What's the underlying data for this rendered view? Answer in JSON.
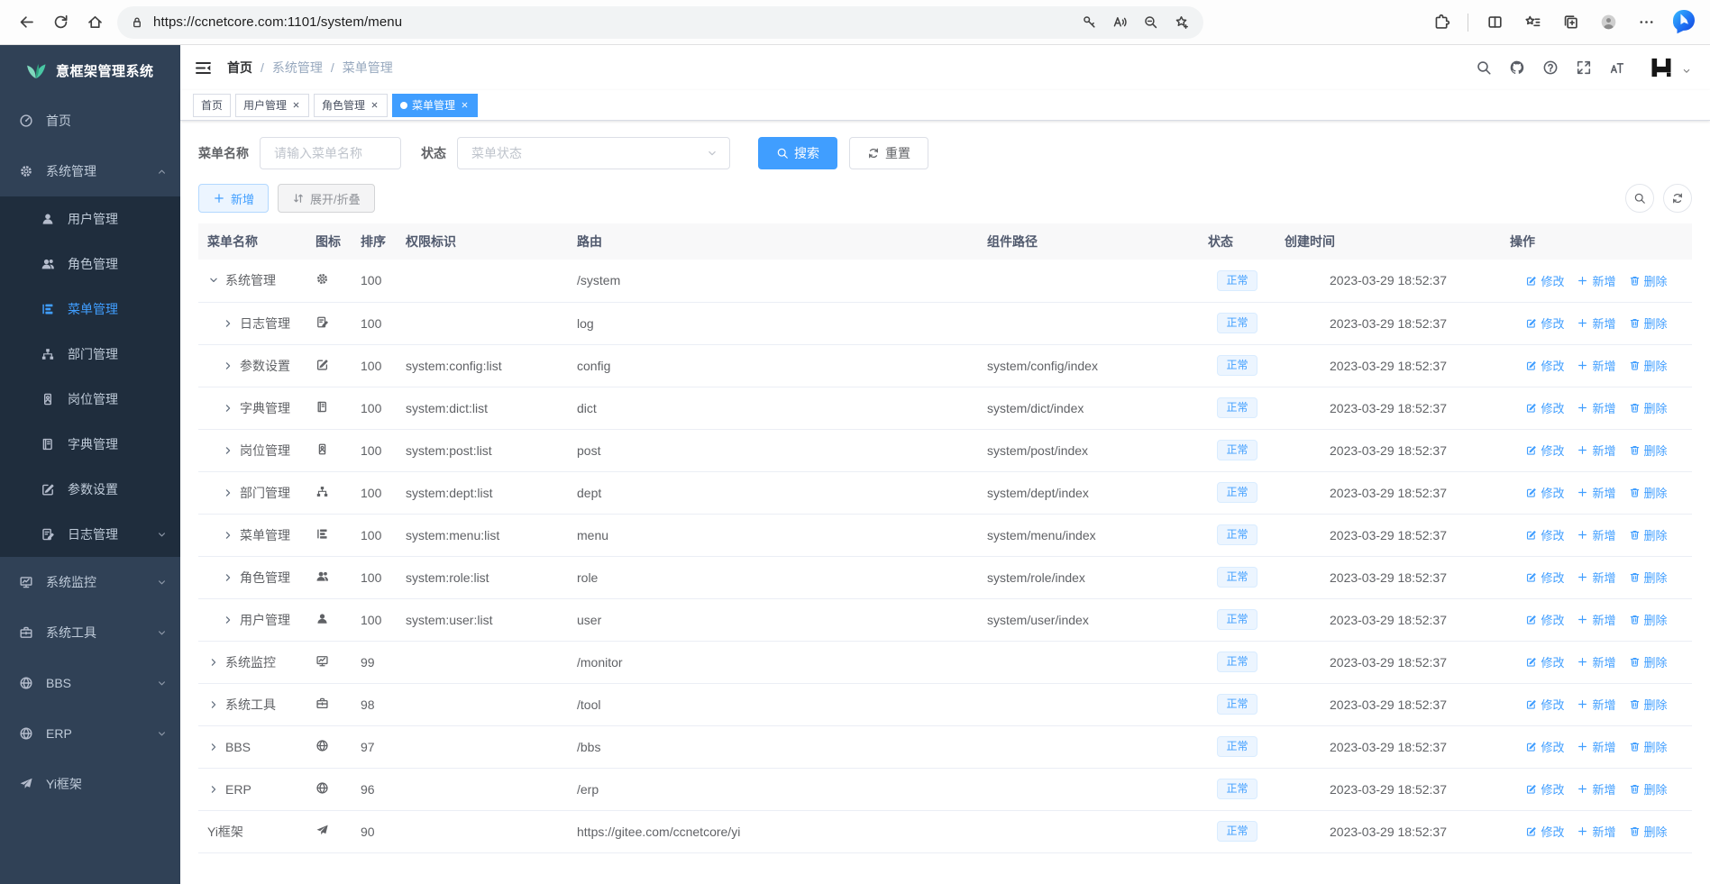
{
  "browser": {
    "url": "https://ccnetcore.com:1101/system/menu",
    "lock_icon": "lock-icon",
    "nav_icons": [
      {
        "icon": "back-icon"
      },
      {
        "icon": "reload-icon"
      },
      {
        "icon": "home-icon"
      }
    ],
    "omnibox_trailing_icons": [
      {
        "icon": "key-icon"
      },
      {
        "icon": "read-aloud-icon"
      },
      {
        "icon": "zoom-out-icon"
      },
      {
        "icon": "favorite-add-icon"
      }
    ],
    "toolbar_icons_a": [
      {
        "icon": "extensions-icon"
      }
    ],
    "toolbar_icons_b": [
      {
        "icon": "split-screen-icon"
      },
      {
        "icon": "favorites-icon"
      },
      {
        "icon": "collections-icon"
      },
      {
        "icon": "profile-icon"
      },
      {
        "icon": "more-icon"
      }
    ],
    "bing_icon": "bing-icon"
  },
  "app": {
    "accent_color": "#409eff",
    "sidebar_bg": "#304156",
    "submenu_bg": "#1f2d3d",
    "sidebar": {
      "logo_icon": "leaf-icon",
      "title": "意框架管理系统",
      "items": [
        {
          "label": "首页",
          "icon": "dashboard-icon"
        },
        {
          "label": "系统管理",
          "icon": "gear-icon",
          "arrow": "chevron-up-icon"
        },
        {
          "label": "用户管理",
          "icon": "user-icon",
          "sub": true
        },
        {
          "label": "角色管理",
          "icon": "users-icon",
          "sub": true
        },
        {
          "label": "菜单管理",
          "icon": "menu-tree-icon",
          "sub": true,
          "active": true
        },
        {
          "label": "部门管理",
          "icon": "org-tree-icon",
          "sub": true
        },
        {
          "label": "岗位管理",
          "icon": "badge-icon",
          "sub": true
        },
        {
          "label": "字典管理",
          "icon": "book-icon",
          "sub": true
        },
        {
          "label": "参数设置",
          "icon": "edit-square-icon",
          "sub": true
        },
        {
          "label": "日志管理",
          "icon": "doc-edit-icon",
          "sub": true,
          "arrow": "chevron-down-icon"
        },
        {
          "label": "系统监控",
          "icon": "monitor-icon",
          "arrow": "chevron-down-icon"
        },
        {
          "label": "系统工具",
          "icon": "toolbox-icon",
          "arrow": "chevron-down-icon"
        },
        {
          "label": "BBS",
          "icon": "globe-icon",
          "arrow": "chevron-down-icon"
        },
        {
          "label": "ERP",
          "icon": "globe-icon",
          "arrow": "chevron-down-icon"
        },
        {
          "label": "Yi框架",
          "icon": "send-icon"
        }
      ]
    },
    "navbar": {
      "menu_icon": "hamburger-icon",
      "breadcrumb": [
        {
          "label": "首页"
        },
        {
          "label": "系统管理"
        },
        {
          "label": "菜单管理"
        }
      ],
      "icons": [
        {
          "icon": "search-icon"
        },
        {
          "icon": "github-icon"
        },
        {
          "icon": "question-icon"
        },
        {
          "icon": "fullscreen-icon"
        },
        {
          "icon": "font-size-icon"
        }
      ],
      "avatar_icon": "yi-logo-icon",
      "avatar_caret": "chevron-down-icon"
    },
    "tabs": [
      {
        "label": "首页"
      },
      {
        "label": "用户管理",
        "closable": true,
        "close_icon": "close-icon"
      },
      {
        "label": "角色管理",
        "closable": true,
        "close_icon": "close-icon"
      },
      {
        "label": "菜单管理",
        "active": true,
        "closable": true,
        "close_icon": "close-icon"
      }
    ],
    "filter": {
      "name_label": "菜单名称",
      "name_placeholder": "请输入菜单名称",
      "status_label": "状态",
      "status_placeholder": "菜单状态",
      "caret_icon": "caret-down-icon",
      "search_label": "搜索",
      "search_icon": "search-icon",
      "reset_label": "重置",
      "reset_icon": "refresh-icon"
    },
    "toolbar": {
      "add_label": "新增",
      "add_icon": "plus-icon",
      "toggle_label": "展开/折叠",
      "toggle_icon": "expand-toggle-icon",
      "right_icons": [
        {
          "icon": "search-icon"
        },
        {
          "icon": "refresh-icon"
        }
      ]
    },
    "table": {
      "columns": [
        {
          "label": "菜单名称"
        },
        {
          "label": "图标"
        },
        {
          "label": "排序"
        },
        {
          "label": "权限标识"
        },
        {
          "label": "路由"
        },
        {
          "label": "组件路径"
        },
        {
          "label": "状态"
        },
        {
          "label": "创建时间"
        },
        {
          "label": "操作"
        }
      ],
      "actions": {
        "edit": "修改",
        "edit_icon": "edit-icon",
        "add": "新增",
        "add_icon": "plus-icon",
        "remove": "删除",
        "remove_icon": "trash-icon"
      },
      "rows": [
        {
          "level": 0,
          "arrow": "chevron-down-icon",
          "name": "系统管理",
          "icon": "gear-icon",
          "sort": "100",
          "perm": "",
          "route": "/system",
          "component": "",
          "status": "正常",
          "created": "2023-03-29 18:52:37"
        },
        {
          "level": 1,
          "arrow": "chevron-right-icon",
          "name": "日志管理",
          "icon": "doc-edit-icon",
          "sort": "100",
          "perm": "",
          "route": "log",
          "component": "",
          "status": "正常",
          "created": "2023-03-29 18:52:37"
        },
        {
          "level": 1,
          "arrow": "chevron-right-icon",
          "name": "参数设置",
          "icon": "edit-square-icon",
          "sort": "100",
          "perm": "system:config:list",
          "route": "config",
          "component": "system/config/index",
          "status": "正常",
          "created": "2023-03-29 18:52:37"
        },
        {
          "level": 1,
          "arrow": "chevron-right-icon",
          "name": "字典管理",
          "icon": "book-icon",
          "sort": "100",
          "perm": "system:dict:list",
          "route": "dict",
          "component": "system/dict/index",
          "status": "正常",
          "created": "2023-03-29 18:52:37"
        },
        {
          "level": 1,
          "arrow": "chevron-right-icon",
          "name": "岗位管理",
          "icon": "badge-icon",
          "sort": "100",
          "perm": "system:post:list",
          "route": "post",
          "component": "system/post/index",
          "status": "正常",
          "created": "2023-03-29 18:52:37"
        },
        {
          "level": 1,
          "arrow": "chevron-right-icon",
          "name": "部门管理",
          "icon": "org-tree-icon",
          "sort": "100",
          "perm": "system:dept:list",
          "route": "dept",
          "component": "system/dept/index",
          "status": "正常",
          "created": "2023-03-29 18:52:37"
        },
        {
          "level": 1,
          "arrow": "chevron-right-icon",
          "name": "菜单管理",
          "icon": "menu-tree-icon",
          "sort": "100",
          "perm": "system:menu:list",
          "route": "menu",
          "component": "system/menu/index",
          "status": "正常",
          "created": "2023-03-29 18:52:37"
        },
        {
          "level": 1,
          "arrow": "chevron-right-icon",
          "name": "角色管理",
          "icon": "users-icon",
          "sort": "100",
          "perm": "system:role:list",
          "route": "role",
          "component": "system/role/index",
          "status": "正常",
          "created": "2023-03-29 18:52:37"
        },
        {
          "level": 1,
          "arrow": "chevron-right-icon",
          "name": "用户管理",
          "icon": "user-icon",
          "sort": "100",
          "perm": "system:user:list",
          "route": "user",
          "component": "system/user/index",
          "status": "正常",
          "created": "2023-03-29 18:52:37"
        },
        {
          "level": 0,
          "arrow": "chevron-right-icon",
          "name": "系统监控",
          "icon": "monitor-icon",
          "sort": "99",
          "perm": "",
          "route": "/monitor",
          "component": "",
          "status": "正常",
          "created": "2023-03-29 18:52:37"
        },
        {
          "level": 0,
          "arrow": "chevron-right-icon",
          "name": "系统工具",
          "icon": "toolbox-icon",
          "sort": "98",
          "perm": "",
          "route": "/tool",
          "component": "",
          "status": "正常",
          "created": "2023-03-29 18:52:37"
        },
        {
          "level": 0,
          "arrow": "chevron-right-icon",
          "name": "BBS",
          "icon": "globe-icon",
          "sort": "97",
          "perm": "",
          "route": "/bbs",
          "component": "",
          "status": "正常",
          "created": "2023-03-29 18:52:37"
        },
        {
          "level": 0,
          "arrow": "chevron-right-icon",
          "name": "ERP",
          "icon": "globe-icon",
          "sort": "96",
          "perm": "",
          "route": "/erp",
          "component": "",
          "status": "正常",
          "created": "2023-03-29 18:52:37"
        },
        {
          "level": 0,
          "name": "Yi框架",
          "icon": "send-icon",
          "sort": "90",
          "perm": "",
          "route": "https://gitee.com/ccnetcore/yi",
          "component": "",
          "status": "正常",
          "created": "2023-03-29 18:52:37"
        }
      ]
    }
  }
}
